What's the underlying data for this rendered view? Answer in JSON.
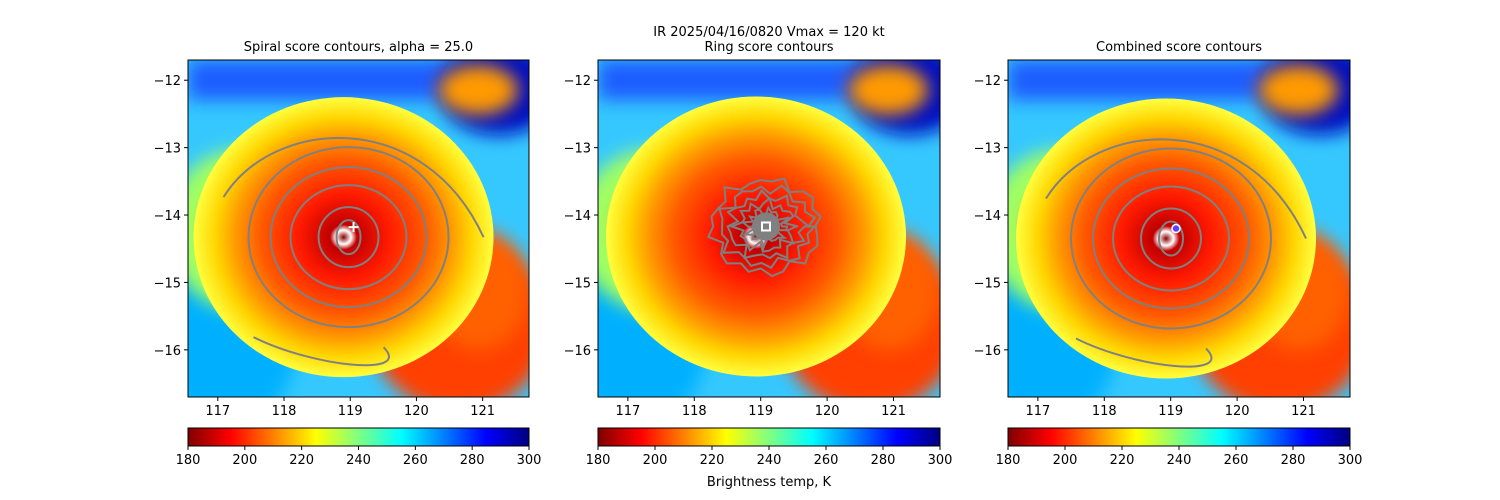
{
  "figure": {
    "suptitle_line1": "IR  2025/04/16/0820    Vmax = 120 kt",
    "colorbar_label": "Brightness temp, K",
    "colormap": [
      "#800000",
      "#ff0000",
      "#ff8000",
      "#ffff00",
      "#80ff80",
      "#00ffff",
      "#0080ff",
      "#0000ff",
      "#000080"
    ]
  },
  "chart_data": [
    {
      "type": "heatmap",
      "title": "Spiral score contours, alpha = 25.0",
      "xlim": [
        116.55,
        121.7
      ],
      "ylim": [
        -16.7,
        -11.7
      ],
      "xticks": [
        "117",
        "118",
        "119",
        "120",
        "121"
      ],
      "yticks": [
        "−12",
        "−13",
        "−14",
        "−15",
        "−16"
      ],
      "xtick_values": [
        117,
        118,
        119,
        120,
        121
      ],
      "ytick_values": [
        -12,
        -13,
        -14,
        -15,
        -16
      ],
      "colorbar": {
        "min": 180,
        "max": 300,
        "ticks": [
          "180",
          "200",
          "220",
          "240",
          "260",
          "280",
          "300"
        ],
        "tick_values": [
          180,
          200,
          220,
          240,
          260,
          280,
          300
        ]
      },
      "center": {
        "lon": 119.05,
        "lat": -14.18
      },
      "marker": "plus"
    },
    {
      "type": "heatmap",
      "title": "Ring score contours",
      "xlim": [
        116.55,
        121.7
      ],
      "ylim": [
        -16.7,
        -11.7
      ],
      "xticks": [
        "117",
        "118",
        "119",
        "120",
        "121"
      ],
      "yticks": [
        "−12",
        "−13",
        "−14",
        "−15",
        "−16"
      ],
      "xtick_values": [
        117,
        118,
        119,
        120,
        121
      ],
      "ytick_values": [
        -12,
        -13,
        -14,
        -15,
        -16
      ],
      "colorbar": {
        "min": 180,
        "max": 300,
        "ticks": [
          "180",
          "200",
          "220",
          "240",
          "260",
          "280",
          "300"
        ],
        "tick_values": [
          180,
          200,
          220,
          240,
          260,
          280,
          300
        ]
      },
      "center": {
        "lon": 119.08,
        "lat": -14.17
      },
      "marker": "square"
    },
    {
      "type": "heatmap",
      "title": "Combined score contours",
      "xlim": [
        116.55,
        121.7
      ],
      "ylim": [
        -16.7,
        -11.7
      ],
      "xticks": [
        "117",
        "118",
        "119",
        "120",
        "121"
      ],
      "yticks": [
        "−12",
        "−13",
        "−14",
        "−15",
        "−16"
      ],
      "xtick_values": [
        117,
        118,
        119,
        120,
        121
      ],
      "ytick_values": [
        -12,
        -13,
        -14,
        -15,
        -16
      ],
      "colorbar": {
        "min": 180,
        "max": 300,
        "ticks": [
          "180",
          "200",
          "220",
          "240",
          "260",
          "280",
          "300"
        ],
        "tick_values": [
          180,
          200,
          220,
          240,
          260,
          280,
          300
        ]
      },
      "center": {
        "lon": 119.08,
        "lat": -14.2
      },
      "marker": "circle"
    }
  ]
}
